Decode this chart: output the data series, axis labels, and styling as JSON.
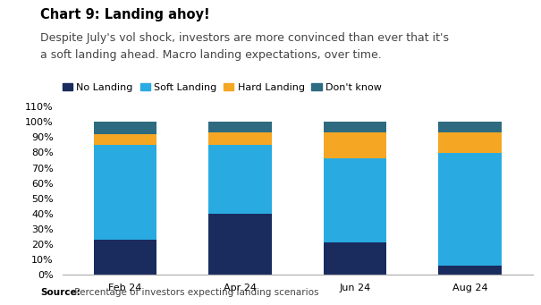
{
  "categories": [
    "Feb 24",
    "Apr 24",
    "Jun 24",
    "Aug 24"
  ],
  "no_landing": [
    23,
    40,
    21,
    6
  ],
  "soft_landing": [
    62,
    45,
    55,
    74
  ],
  "hard_landing": [
    7,
    8,
    17,
    13
  ],
  "dont_know": [
    8,
    7,
    7,
    7
  ],
  "colors": {
    "no_landing": "#1a2b5e",
    "soft_landing": "#29abe2",
    "hard_landing": "#f5a623",
    "dont_know": "#2e6b80"
  },
  "legend_labels": [
    "No Landing",
    "Soft Landing",
    "Hard Landing",
    "Don't know"
  ],
  "title_bold": "Chart 9: Landing ahoy!",
  "subtitle_line1": "Despite July's vol shock, investors are more convinced than ever that it's",
  "subtitle_line2": "a soft landing ahead. Macro landing expectations, over time.",
  "source_bold": "Source:",
  "source_rest": " Percentage of investors expecting landing scenarios",
  "ylim": [
    0,
    110
  ],
  "yticks": [
    0,
    10,
    20,
    30,
    40,
    50,
    60,
    70,
    80,
    90,
    100,
    110
  ],
  "ytick_labels": [
    "0%",
    "10%",
    "20%",
    "30%",
    "40%",
    "50%",
    "60%",
    "70%",
    "80%",
    "90%",
    "100%",
    "110%"
  ],
  "bar_width": 0.55,
  "background_color": "#ffffff",
  "title_fontsize": 10.5,
  "subtitle_fontsize": 9,
  "axis_fontsize": 8,
  "legend_fontsize": 8,
  "source_fontsize": 7.5
}
